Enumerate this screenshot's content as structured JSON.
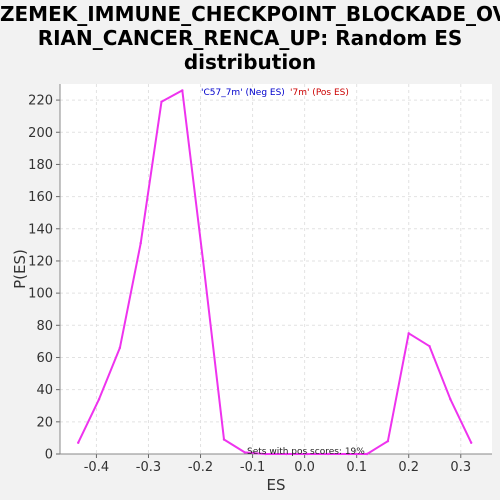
{
  "chart_data": {
    "type": "line",
    "title_line1": "ZEMEK_IMMUNE_CHECKPOINT_BLOCKADE_OVA",
    "title_line2": "RIAN_CANCER_RENCA_UP: Random ES",
    "title_line3": "distribution",
    "xlabel": "ES",
    "ylabel": "P(ES)",
    "xlim": [
      -0.47,
      0.36
    ],
    "ylim": [
      0,
      230
    ],
    "x_ticks": [
      -0.4,
      -0.3,
      -0.2,
      -0.1,
      0.0,
      0.1,
      0.2,
      0.3
    ],
    "x_tick_labels": [
      "-0.4",
      "-0.3",
      "-0.2",
      "-0.1",
      "0.0",
      "0.1",
      "0.2",
      "0.3"
    ],
    "y_ticks": [
      0,
      20,
      40,
      60,
      80,
      100,
      120,
      140,
      160,
      180,
      200,
      220
    ],
    "y_tick_labels": [
      "0",
      "20",
      "40",
      "60",
      "80",
      "100",
      "120",
      "140",
      "160",
      "180",
      "200",
      "220"
    ],
    "grid": true,
    "legend": {
      "placement": "top-center",
      "neg_label": "'C57_7m' (Neg ES)",
      "pos_label": "'7m' (Pos ES)",
      "neg_color": "#0000cc",
      "pos_color": "#cc0000"
    },
    "annotation": "Sets with pos scores: 19%",
    "series": [
      {
        "color": "#ee33ee",
        "x": [
          -0.435,
          -0.395,
          -0.355,
          -0.315,
          -0.275,
          -0.235,
          -0.195,
          -0.155,
          -0.115,
          -0.075,
          -0.035,
          0.005,
          0.045,
          0.085,
          0.12,
          0.16,
          0.2,
          0.24,
          0.28,
          0.32
        ],
        "y": [
          7,
          34,
          66,
          131,
          219,
          226,
          120,
          9,
          1,
          0,
          0,
          0,
          0,
          0,
          0,
          8,
          75,
          67,
          34,
          7
        ]
      }
    ]
  }
}
